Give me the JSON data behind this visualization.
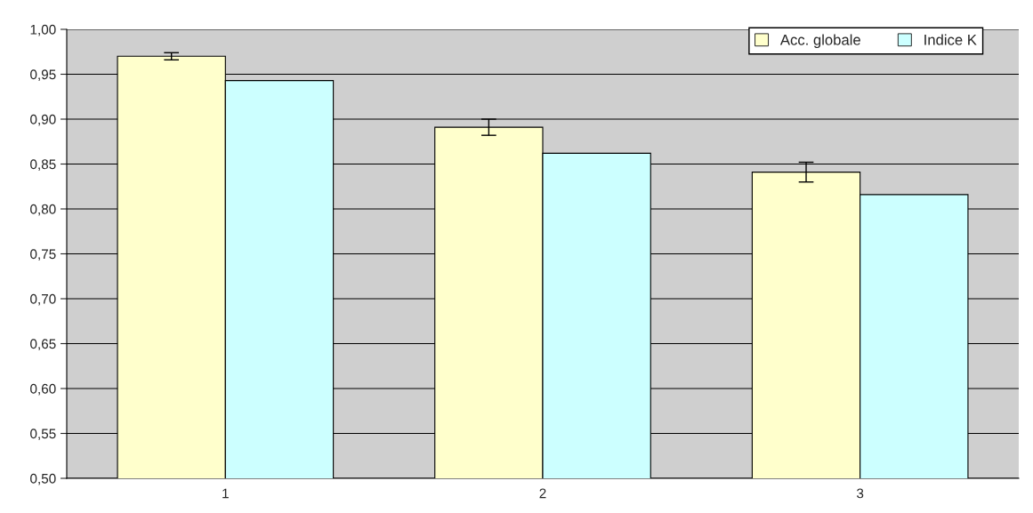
{
  "chart_data": {
    "type": "bar",
    "categories": [
      "1",
      "2",
      "3"
    ],
    "series": [
      {
        "name": "Acc. globale",
        "color": "#ffffcc",
        "values": [
          0.97,
          0.891,
          0.841
        ],
        "errors": [
          0.004,
          0.009,
          0.011
        ]
      },
      {
        "name": "Indice K",
        "color": "#ccffff",
        "values": [
          0.943,
          0.862,
          0.816
        ]
      }
    ],
    "ylim": [
      0.5,
      1.0
    ],
    "yticks": [
      {
        "value": 0.5,
        "label": "0,50"
      },
      {
        "value": 0.55,
        "label": "0,55"
      },
      {
        "value": 0.6,
        "label": "0,60"
      },
      {
        "value": 0.65,
        "label": "0,65"
      },
      {
        "value": 0.7,
        "label": "0,70"
      },
      {
        "value": 0.75,
        "label": "0,75"
      },
      {
        "value": 0.8,
        "label": "0,80"
      },
      {
        "value": 0.85,
        "label": "0,85"
      },
      {
        "value": 0.9,
        "label": "0,90"
      },
      {
        "value": 0.95,
        "label": "0,95"
      },
      {
        "value": 1.0,
        "label": "1,00"
      }
    ],
    "grid": "y",
    "legend": "top right"
  }
}
